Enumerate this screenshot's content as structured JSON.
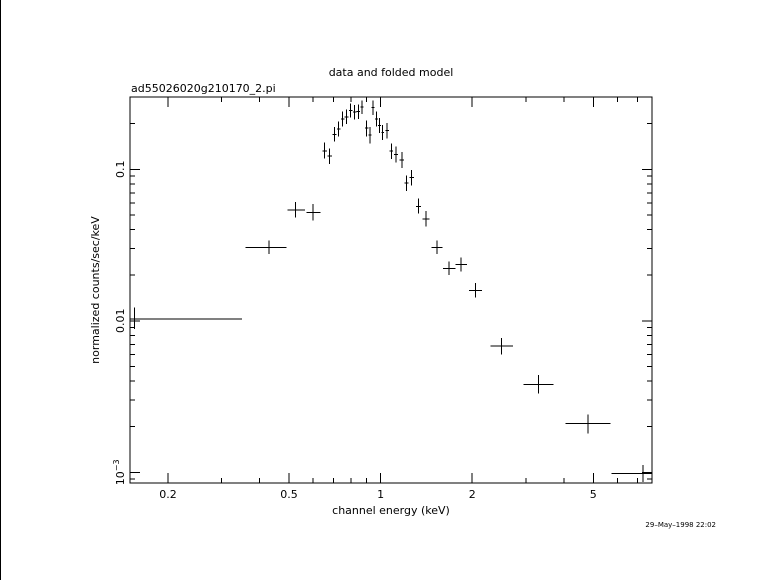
{
  "chart_data": {
    "type": "scatter",
    "title": "data and folded model",
    "subtitle": "ad55026020g210170_2.pi",
    "xlabel": "channel energy (keV)",
    "ylabel": "normalized counts/sec/keV",
    "timestamp": "29–May–1998 22:02",
    "x_scale": "log",
    "y_scale": "log",
    "xlim": [
      0.15,
      7.8
    ],
    "ylim": [
      0.00085,
      0.3
    ],
    "x_ticks": [
      {
        "value": 0.2,
        "label": "0.2"
      },
      {
        "value": 0.5,
        "label": "0.5"
      },
      {
        "value": 1,
        "label": "1"
      },
      {
        "value": 2,
        "label": "2"
      },
      {
        "value": 5,
        "label": "5"
      }
    ],
    "y_ticks": [
      {
        "value": 0.001,
        "label": "10",
        "exponent": "−3"
      },
      {
        "value": 0.01,
        "label": "0.01"
      },
      {
        "value": 0.1,
        "label": "0.1"
      }
    ],
    "grid": false,
    "series": [
      {
        "points": [
          {
            "x": 0.155,
            "x_low": 0.15,
            "x_high": 0.35,
            "y": 0.0103,
            "y_low": 0.0088,
            "y_high": 0.0122
          },
          {
            "x": 0.43,
            "x_low": 0.36,
            "x_high": 0.49,
            "y": 0.0305,
            "y_low": 0.0275,
            "y_high": 0.034
          },
          {
            "x": 0.525,
            "x_low": 0.495,
            "x_high": 0.565,
            "y": 0.054,
            "y_low": 0.048,
            "y_high": 0.061
          },
          {
            "x": 0.6,
            "x_low": 0.57,
            "x_high": 0.635,
            "y": 0.052,
            "y_low": 0.046,
            "y_high": 0.059
          },
          {
            "x": 0.655,
            "x_low": 0.643,
            "x_high": 0.667,
            "y": 0.132,
            "y_low": 0.118,
            "y_high": 0.15
          },
          {
            "x": 0.68,
            "x_low": 0.668,
            "x_high": 0.693,
            "y": 0.122,
            "y_low": 0.108,
            "y_high": 0.137
          },
          {
            "x": 0.705,
            "x_low": 0.694,
            "x_high": 0.717,
            "y": 0.17,
            "y_low": 0.152,
            "y_high": 0.19
          },
          {
            "x": 0.728,
            "x_low": 0.718,
            "x_high": 0.739,
            "y": 0.185,
            "y_low": 0.165,
            "y_high": 0.207
          },
          {
            "x": 0.75,
            "x_low": 0.74,
            "x_high": 0.761,
            "y": 0.215,
            "y_low": 0.192,
            "y_high": 0.24
          },
          {
            "x": 0.773,
            "x_low": 0.762,
            "x_high": 0.784,
            "y": 0.222,
            "y_low": 0.199,
            "y_high": 0.248
          },
          {
            "x": 0.797,
            "x_low": 0.786,
            "x_high": 0.808,
            "y": 0.245,
            "y_low": 0.22,
            "y_high": 0.272
          },
          {
            "x": 0.822,
            "x_low": 0.81,
            "x_high": 0.833,
            "y": 0.238,
            "y_low": 0.213,
            "y_high": 0.265
          },
          {
            "x": 0.845,
            "x_low": 0.834,
            "x_high": 0.857,
            "y": 0.24,
            "y_low": 0.215,
            "y_high": 0.268
          },
          {
            "x": 0.868,
            "x_low": 0.858,
            "x_high": 0.879,
            "y": 0.258,
            "y_low": 0.232,
            "y_high": 0.285
          },
          {
            "x": 0.9,
            "x_low": 0.89,
            "x_high": 0.912,
            "y": 0.187,
            "y_low": 0.165,
            "y_high": 0.21
          },
          {
            "x": 0.922,
            "x_low": 0.913,
            "x_high": 0.933,
            "y": 0.168,
            "y_low": 0.148,
            "y_high": 0.19
          },
          {
            "x": 0.945,
            "x_low": 0.934,
            "x_high": 0.956,
            "y": 0.255,
            "y_low": 0.228,
            "y_high": 0.284
          },
          {
            "x": 0.968,
            "x_low": 0.957,
            "x_high": 0.98,
            "y": 0.215,
            "y_low": 0.192,
            "y_high": 0.24
          },
          {
            "x": 0.992,
            "x_low": 0.981,
            "x_high": 1.004,
            "y": 0.195,
            "y_low": 0.174,
            "y_high": 0.218
          },
          {
            "x": 1.015,
            "x_low": 1.005,
            "x_high": 1.027,
            "y": 0.175,
            "y_low": 0.156,
            "y_high": 0.196
          },
          {
            "x": 1.05,
            "x_low": 1.037,
            "x_high": 1.064,
            "y": 0.18,
            "y_low": 0.16,
            "y_high": 0.202
          },
          {
            "x": 1.085,
            "x_low": 1.07,
            "x_high": 1.1,
            "y": 0.132,
            "y_low": 0.117,
            "y_high": 0.148
          },
          {
            "x": 1.125,
            "x_low": 1.108,
            "x_high": 1.142,
            "y": 0.125,
            "y_low": 0.111,
            "y_high": 0.141
          },
          {
            "x": 1.175,
            "x_low": 1.155,
            "x_high": 1.195,
            "y": 0.115,
            "y_low": 0.102,
            "y_high": 0.13
          },
          {
            "x": 1.215,
            "x_low": 1.198,
            "x_high": 1.233,
            "y": 0.081,
            "y_low": 0.072,
            "y_high": 0.091
          },
          {
            "x": 1.265,
            "x_low": 1.245,
            "x_high": 1.285,
            "y": 0.088,
            "y_low": 0.078,
            "y_high": 0.099
          },
          {
            "x": 1.33,
            "x_low": 1.305,
            "x_high": 1.355,
            "y": 0.057,
            "y_low": 0.051,
            "y_high": 0.064
          },
          {
            "x": 1.41,
            "x_low": 1.375,
            "x_high": 1.445,
            "y": 0.047,
            "y_low": 0.042,
            "y_high": 0.053
          },
          {
            "x": 1.53,
            "x_low": 1.47,
            "x_high": 1.6,
            "y": 0.0305,
            "y_low": 0.0275,
            "y_high": 0.034
          },
          {
            "x": 1.68,
            "x_low": 1.605,
            "x_high": 1.76,
            "y": 0.0222,
            "y_low": 0.02,
            "y_high": 0.0247
          },
          {
            "x": 1.84,
            "x_low": 1.765,
            "x_high": 1.92,
            "y": 0.0235,
            "y_low": 0.0212,
            "y_high": 0.0262
          },
          {
            "x": 2.05,
            "x_low": 1.95,
            "x_high": 2.15,
            "y": 0.0158,
            "y_low": 0.0142,
            "y_high": 0.0178
          },
          {
            "x": 2.5,
            "x_low": 2.3,
            "x_high": 2.72,
            "y": 0.0068,
            "y_low": 0.006,
            "y_high": 0.0077
          },
          {
            "x": 3.3,
            "x_low": 2.95,
            "x_high": 3.7,
            "y": 0.0038,
            "y_low": 0.0033,
            "y_high": 0.0044
          },
          {
            "x": 4.8,
            "x_low": 4.05,
            "x_high": 5.7,
            "y": 0.0021,
            "y_low": 0.0018,
            "y_high": 0.0024
          },
          {
            "x": 7.3,
            "x_low": 5.75,
            "x_high": 7.8,
            "y": 0.00098,
            "y_low": 0.00086,
            "y_high": 0.00112
          }
        ]
      }
    ]
  }
}
